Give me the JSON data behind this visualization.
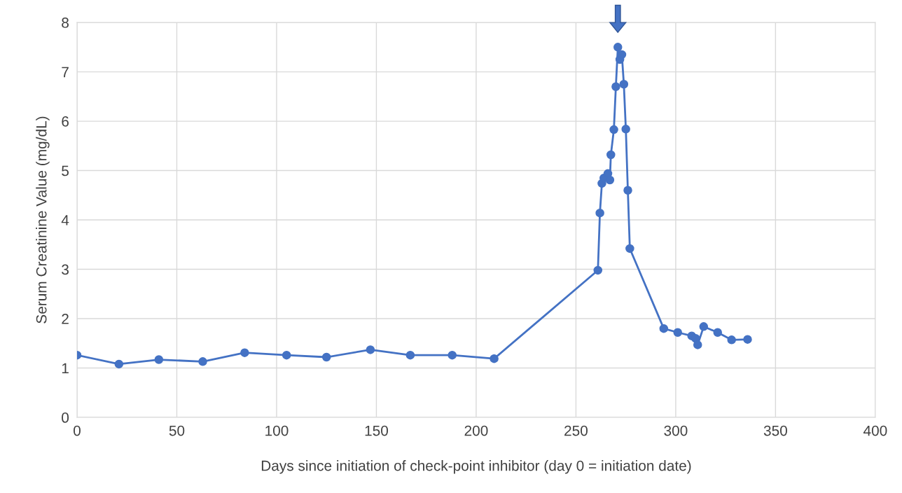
{
  "chart_data": {
    "type": "line",
    "xlabel": "Days since initiation of check-point inhibitor (day 0 = initiation date)",
    "ylabel": "Serum Creatinine Value (mg/dL)",
    "x": [
      0,
      21,
      41,
      63,
      84,
      105,
      125,
      147,
      167,
      188,
      209,
      261,
      262,
      263,
      264,
      266,
      267,
      267.5,
      269,
      270,
      271,
      272,
      273,
      274,
      275,
      276,
      277,
      294,
      301,
      308,
      310,
      311,
      314,
      321,
      328,
      336
    ],
    "series": [
      {
        "color": "#4472c4",
        "values": [
          1.26,
          1.08,
          1.17,
          1.13,
          1.31,
          1.26,
          1.22,
          1.37,
          1.26,
          1.26,
          1.19,
          2.98,
          4.14,
          4.74,
          4.85,
          4.94,
          4.81,
          5.32,
          5.83,
          6.7,
          7.5,
          7.25,
          7.35,
          6.75,
          5.84,
          4.6,
          3.42,
          1.8,
          1.72,
          1.65,
          1.6,
          1.47,
          1.84,
          1.72,
          1.57,
          1.58
        ]
      }
    ],
    "xlim": [
      0,
      400
    ],
    "xticks": [
      0,
      50,
      100,
      150,
      200,
      250,
      300,
      350,
      400
    ],
    "ylim": [
      0,
      8
    ],
    "yticks": [
      0,
      1,
      2,
      3,
      4,
      5,
      6,
      7,
      8
    ],
    "grid": true,
    "marker": "circle",
    "line_style": "solid"
  }
}
